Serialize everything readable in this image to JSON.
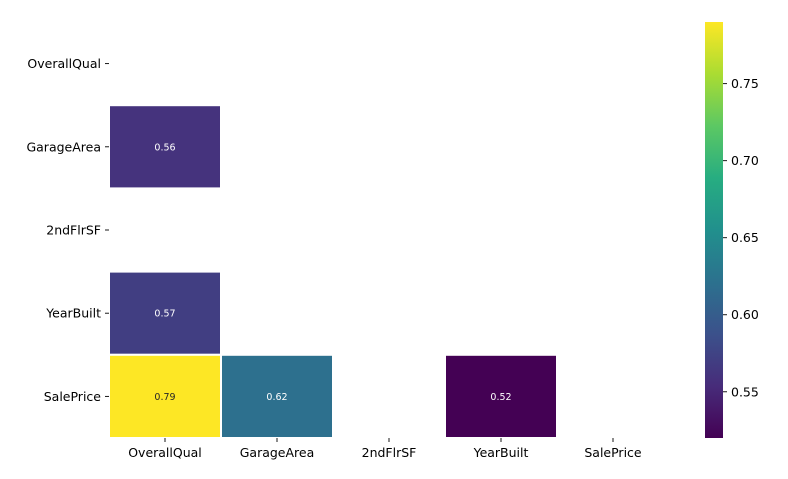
{
  "chart_data": {
    "type": "heatmap",
    "title": "",
    "xlabel": "",
    "ylabel": "",
    "row_labels": [
      "OverallQual",
      "GarageArea",
      "2ndFlrSF",
      "YearBuilt",
      "SalePrice"
    ],
    "col_labels": [
      "OverallQual",
      "GarageArea",
      "2ndFlrSF",
      "YearBuilt",
      "SalePrice"
    ],
    "cells": [
      {
        "row": "GarageArea",
        "col": "OverallQual",
        "value": 0.56,
        "label": "0.56"
      },
      {
        "row": "YearBuilt",
        "col": "OverallQual",
        "value": 0.57,
        "label": "0.57"
      },
      {
        "row": "SalePrice",
        "col": "OverallQual",
        "value": 0.79,
        "label": "0.79"
      },
      {
        "row": "SalePrice",
        "col": "GarageArea",
        "value": 0.62,
        "label": "0.62"
      },
      {
        "row": "SalePrice",
        "col": "YearBuilt",
        "value": 0.52,
        "label": "0.52"
      }
    ],
    "colorbar": {
      "colormap": "viridis",
      "range": [
        0.52,
        0.79
      ],
      "ticks": [
        0.55,
        0.6,
        0.65,
        0.7,
        0.75
      ],
      "tick_labels": [
        "0.55",
        "0.60",
        "0.65",
        "0.70",
        "0.75"
      ]
    },
    "grid": false,
    "legend": "colorbar-right"
  }
}
